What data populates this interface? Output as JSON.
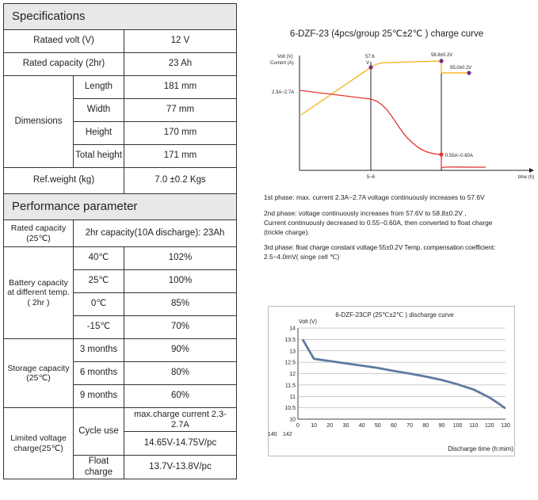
{
  "specs": {
    "header": "Specifications",
    "rated_volt": {
      "label": "Rataed volt (V)",
      "value": "12 V"
    },
    "rated_capacity": {
      "label": "Rated capacity (2hr)",
      "value": "23 Ah"
    },
    "dimensions": {
      "label": "Dimensions",
      "rows": [
        {
          "label": "Length",
          "value": "181 mm"
        },
        {
          "label": "Width",
          "value": "77 mm"
        },
        {
          "label": "Height",
          "value": "170 mm"
        },
        {
          "label": "Total height",
          "value": "171 mm"
        }
      ]
    },
    "weight": {
      "label": "Ref.weight (kg)",
      "value": "7.0",
      "tol": "±0.2 Kgs"
    }
  },
  "performance": {
    "header": "Performance parameter",
    "rated_capacity": {
      "label": "Rated capacity (25℃)",
      "value": "2hr capacity(10A discharge): 23Ah"
    },
    "battery_capacity": {
      "label": "Battery capacity at different temp. ( 2hr )",
      "rows": [
        {
          "temp": "40℃",
          "value": "102%"
        },
        {
          "temp": "25℃",
          "value": "100%"
        },
        {
          "temp": "0℃",
          "value": "85%"
        },
        {
          "temp": "-15℃",
          "value": "70%"
        }
      ]
    },
    "storage": {
      "label": "Storage capacity (25℃)",
      "rows": [
        {
          "period": "3 months",
          "value": "90%"
        },
        {
          "period": "6 months",
          "value": "80%"
        },
        {
          "period": "9 months",
          "value": "60%"
        }
      ]
    },
    "limited": {
      "label": "Limited voltage charge(25℃)",
      "cycle_label": "Cycle use",
      "cycle_current": "max.charge current 2.3-2.7A",
      "cycle_voltage": "14.65V-14.75V/pc",
      "float_label": "Float charge",
      "float_voltage": "13.7V-13.8V/pc"
    }
  },
  "charge_chart": {
    "title": "6-DZF-23 (4pcs/group  25℃±2℃ ) charge curve",
    "ylabel": "Volt (V)",
    "ylabel2": "Current (A)",
    "xlabel": "time (h)",
    "x_marker": "5~6",
    "label_576a": "57.6",
    "label_576b": "V",
    "label_588": "58.8±0.2V",
    "label_550": "55.0±0.2V",
    "label_current": "2.3A~2.7A",
    "label_float_current": "0.55A~0.60A"
  },
  "phases": {
    "p1": "1st phase: max. current 2.3A~2.7A voltage continuously increases to 57.6V",
    "p2a": "2nd phase: voltage continuously increases from 57.6V to 58.8±0.2V ,",
    "p2b": "Current continuously decreased to 0.55~0.60A, then converted to float charge",
    "p2c": "(trickle charge).",
    "p3a": "3rd phase: float charge constant voltage 55±0.2V  Temp. compensation coefficient:",
    "p3b": "2.5~4.0mV( singe cell ℃)"
  },
  "chart_data": {
    "type": "line",
    "title": "6-DZF-23CP (25℃±2℃ ) discharge curve",
    "ylabel": "Volt (V)",
    "xlabel": "Discharge time (h:mim)",
    "x_extra_labels": [
      "140",
      "142"
    ],
    "xlim": [
      0,
      130
    ],
    "ylim": [
      10,
      14
    ],
    "x_ticks": [
      0,
      10,
      20,
      30,
      40,
      50,
      60,
      70,
      80,
      90,
      100,
      110,
      120,
      130
    ],
    "y_ticks": [
      10,
      10.5,
      11,
      11.5,
      12,
      12.5,
      13,
      13.5,
      14
    ],
    "grid": true,
    "series": [
      {
        "color": "#4a6fa5",
        "x": [
          3,
          10,
          20,
          30,
          40,
          50,
          60,
          70,
          80,
          90,
          100,
          110,
          120,
          125,
          130
        ],
        "y": [
          13.5,
          12.65,
          12.55,
          12.45,
          12.35,
          12.25,
          12.12,
          12.0,
          11.87,
          11.72,
          11.53,
          11.3,
          10.95,
          10.72,
          10.47
        ]
      }
    ]
  }
}
